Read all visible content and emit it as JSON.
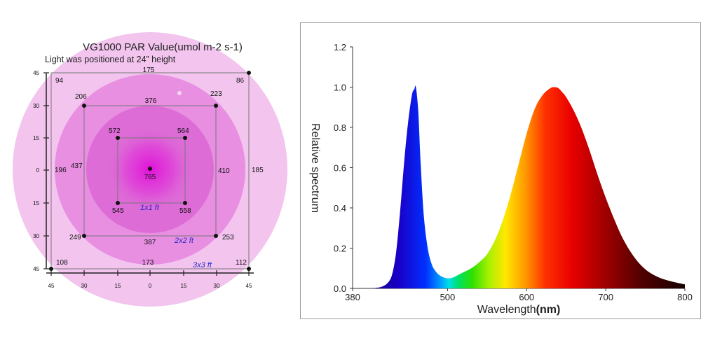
{
  "chart_data": [
    {
      "type": "heatmap",
      "title": "VG1000 PAR Value(umol m-2 s-1)",
      "subtitle": "Light was positioned at 24” height",
      "x_ticks": [
        "45",
        "30",
        "15",
        "0",
        "15",
        "30",
        "45"
      ],
      "y_ticks": [
        "45",
        "30",
        "15",
        "0",
        "15",
        "30",
        "45"
      ],
      "center_value": "765",
      "squares": [
        {
          "label": "1x1 ft",
          "corners": {
            "top_left": "572",
            "top_right": "564",
            "bottom_left": "545",
            "bottom_right": "558"
          }
        },
        {
          "label": "2x2 ft",
          "corners": {
            "top_left": "206",
            "top_right": "223",
            "bottom_left": "249",
            "bottom_right": "253"
          },
          "edges": {
            "top": "376",
            "bottom": "387",
            "left": "437",
            "right": "410"
          }
        },
        {
          "label": "3x3 ft",
          "corners": {
            "top_left": "94",
            "top_right": "86",
            "bottom_left": "108",
            "bottom_right": "112"
          },
          "edges": {
            "top": "175",
            "bottom": "173",
            "left": "196",
            "right": "185"
          }
        }
      ],
      "colors": {
        "outer": "#f2c4ee",
        "middle": "#e68ae0",
        "inner": "#dc6ad6",
        "center": "#e020d8"
      }
    },
    {
      "type": "area",
      "xlabel_main": "Wavelength",
      "xlabel_unit": "(nm)",
      "ylabel": "Relative spectrum",
      "xlim": [
        380,
        800
      ],
      "ylim": [
        0,
        1.2
      ],
      "x_ticks": [
        "380",
        "500",
        "600",
        "700",
        "800"
      ],
      "y_ticks": [
        "0.0",
        "0.2",
        "0.4",
        "0.6",
        "0.8",
        "1.0",
        "1.2"
      ],
      "grid": false,
      "x": [
        380,
        400,
        410,
        418,
        425,
        430,
        435,
        440,
        445,
        450,
        455,
        458,
        460,
        463,
        466,
        470,
        475,
        480,
        485,
        490,
        495,
        500,
        505,
        510,
        520,
        530,
        540,
        550,
        560,
        570,
        580,
        590,
        600,
        610,
        620,
        630,
        635,
        640,
        645,
        650,
        660,
        670,
        680,
        690,
        700,
        710,
        720,
        730,
        740,
        750,
        760,
        770,
        780,
        790,
        800
      ],
      "y": [
        0,
        0,
        0.003,
        0.01,
        0.03,
        0.07,
        0.18,
        0.38,
        0.62,
        0.82,
        0.96,
        0.99,
        1.0,
        0.88,
        0.62,
        0.36,
        0.2,
        0.12,
        0.085,
        0.065,
        0.055,
        0.05,
        0.052,
        0.06,
        0.08,
        0.1,
        0.13,
        0.17,
        0.24,
        0.34,
        0.47,
        0.62,
        0.77,
        0.89,
        0.96,
        0.995,
        1.0,
        0.995,
        0.975,
        0.95,
        0.88,
        0.79,
        0.68,
        0.56,
        0.45,
        0.35,
        0.26,
        0.19,
        0.135,
        0.095,
        0.068,
        0.05,
        0.038,
        0.028,
        0.02
      ]
    }
  ]
}
